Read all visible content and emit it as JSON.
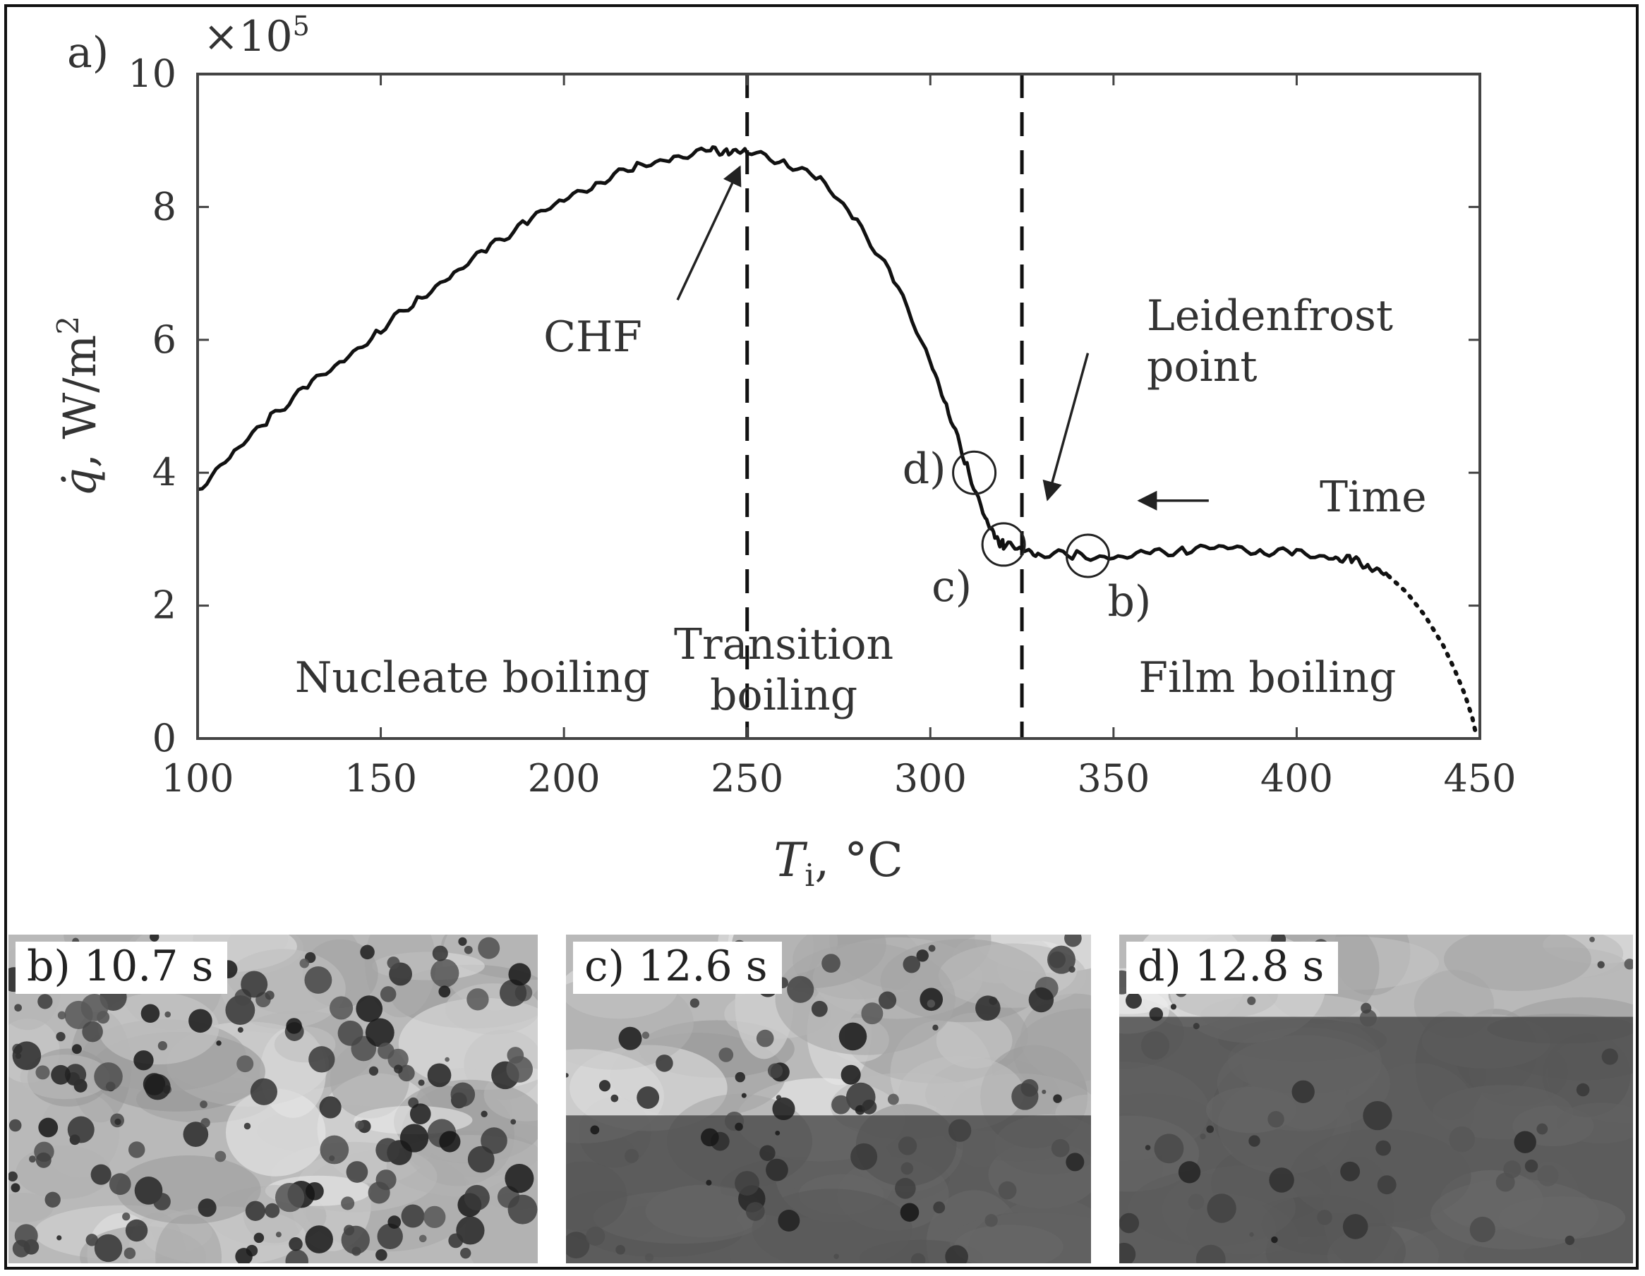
{
  "chart_data": {
    "type": "line",
    "panel_label": "a)",
    "xlabel": "T_i, °C",
    "xlabel_main": "T",
    "xlabel_sub": "i",
    "xlabel_unit": ", °C",
    "ylabel": "q̇, W/m²",
    "ylabel_main": "q̇",
    "ylabel_unit": ", W/m",
    "ylabel_sup": "2",
    "y_multiplier": "×10",
    "y_multiplier_exp": "5",
    "xlim": [
      100,
      450
    ],
    "ylim": [
      0,
      10
    ],
    "xticks": [
      "100",
      "150",
      "200",
      "250",
      "300",
      "350",
      "400",
      "450"
    ],
    "yticks": [
      "0",
      "2",
      "4",
      "6",
      "8",
      "10"
    ],
    "series": [
      {
        "style": "solid",
        "x": [
          100,
          110,
          120,
          130,
          140,
          150,
          160,
          170,
          180,
          190,
          200,
          210,
          220,
          230,
          240,
          245,
          250,
          260,
          270,
          280,
          290,
          300,
          305,
          310,
          315,
          318,
          320,
          325,
          330,
          340,
          350,
          360,
          370,
          380,
          390,
          400,
          410,
          415,
          420,
          425
        ],
        "y": [
          3.75,
          4.3,
          4.85,
          5.3,
          5.7,
          6.15,
          6.6,
          7.0,
          7.4,
          7.8,
          8.1,
          8.4,
          8.6,
          8.75,
          8.83,
          8.85,
          8.82,
          8.7,
          8.4,
          7.8,
          6.9,
          5.7,
          4.9,
          4.1,
          3.3,
          3.0,
          2.92,
          2.85,
          2.78,
          2.75,
          2.72,
          2.78,
          2.85,
          2.88,
          2.83,
          2.78,
          2.72,
          2.68,
          2.6,
          2.45
        ]
      },
      {
        "style": "dotted",
        "x": [
          425,
          430,
          435,
          440,
          443,
          446,
          448,
          449
        ],
        "y": [
          2.45,
          2.2,
          1.85,
          1.4,
          1.05,
          0.65,
          0.3,
          0.05
        ]
      }
    ],
    "vlines": [
      250,
      325
    ],
    "regions": [
      {
        "lines": [
          "Nucleate boiling"
        ],
        "x": 175,
        "y": 0.7
      },
      {
        "lines": [
          "Transition",
          "boiling"
        ],
        "x": 260,
        "y": 1.2
      },
      {
        "lines": [
          "Film boiling"
        ],
        "x": 392,
        "y": 0.7
      }
    ],
    "markers": [
      {
        "label": "d)",
        "x": 312,
        "y": 4.0,
        "label_pos": "left"
      },
      {
        "label": "c)",
        "x": 320,
        "y": 2.92,
        "label_pos": "below-left"
      },
      {
        "label": "b)",
        "x": 343,
        "y": 2.75,
        "label_pos": "below-right"
      }
    ],
    "annotations": [
      {
        "text_lines": [
          "CHF"
        ],
        "arrow_from": [
          231,
          6.6
        ],
        "arrow_to": [
          248,
          8.6
        ]
      },
      {
        "text_lines": [
          "Leidenfrost",
          "point"
        ],
        "arrow_from": [
          343,
          5.8
        ],
        "arrow_to": [
          332,
          3.6
        ]
      },
      {
        "text_lines": [
          "Time"
        ],
        "arrow_from": [
          376,
          3.58
        ],
        "arrow_to": [
          357,
          3.58
        ]
      }
    ]
  },
  "photos": [
    {
      "label": "b) 10.7 s"
    },
    {
      "label": "c) 12.6 s"
    },
    {
      "label": "d) 12.8 s"
    }
  ]
}
